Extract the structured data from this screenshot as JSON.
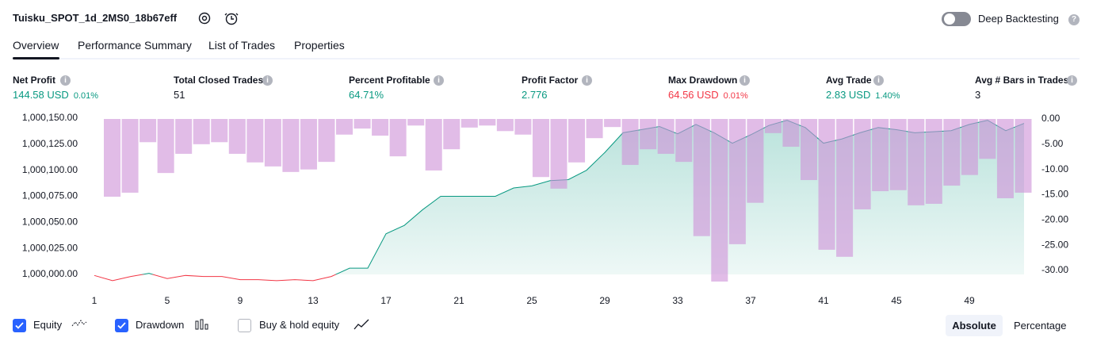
{
  "header": {
    "title": "Tuisku_SPOT_1d_2MS0_18b67eff",
    "toggle_label": "Deep Backtesting"
  },
  "tabs": [
    "Overview",
    "Performance Summary",
    "List of Trades",
    "Properties"
  ],
  "metrics": [
    {
      "label": "Net Profit",
      "value": "144.58 USD",
      "pct": "0.01%"
    },
    {
      "label": "Total Closed Trades",
      "value": "51"
    },
    {
      "label": "Percent Profitable",
      "value": "64.71%"
    },
    {
      "label": "Profit Factor",
      "value": "2.776"
    },
    {
      "label": "Max Drawdown",
      "value": "64.56 USD",
      "pct": "0.01%"
    },
    {
      "label": "Avg Trade",
      "value": "2.83 USD",
      "pct": "1.40%"
    },
    {
      "label": "Avg # Bars in Trades",
      "value": "3"
    }
  ],
  "chart_data": {
    "type": "line",
    "x": [
      1,
      2,
      3,
      4,
      5,
      6,
      7,
      8,
      9,
      10,
      11,
      12,
      13,
      14,
      15,
      16,
      17,
      18,
      19,
      20,
      21,
      22,
      23,
      24,
      25,
      26,
      27,
      28,
      29,
      30,
      31,
      32,
      33,
      34,
      35,
      36,
      37,
      38,
      39,
      40,
      41,
      42,
      43,
      44,
      45,
      46,
      47,
      48,
      49,
      50,
      51,
      52
    ],
    "series": [
      {
        "name": "Equity",
        "color": "#089981",
        "values": [
          999999,
          999994,
          999998,
          1000001,
          999996,
          999999,
          999998,
          999998,
          999995,
          999995,
          999994,
          999995,
          999994,
          999998,
          1000006,
          1000006,
          1000039,
          1000047,
          1000062,
          1000075,
          1000075,
          1000075,
          1000075,
          1000083,
          1000085,
          1000090,
          1000091,
          1000100,
          1000117,
          1000136,
          1000139,
          1000142,
          1000135,
          1000144,
          1000136,
          1000126,
          1000134,
          1000143,
          1000148,
          1000141,
          1000126,
          1000130,
          1000136,
          1000141,
          1000139,
          1000136,
          1000137,
          1000138,
          1000144,
          1000148,
          1000138,
          1000145
        ]
      },
      {
        "name": "Drawdown",
        "color": "#ce93d8",
        "axis": "y2",
        "values": [
          -15.4,
          -14.6,
          -4.6,
          -10.7,
          -6.9,
          -5.0,
          -4.6,
          -6.9,
          -8.6,
          -9.4,
          -10.5,
          -10.0,
          -8.5,
          -3.1,
          -1.9,
          -3.3,
          -7.4,
          -1.3,
          -10.2,
          -6.0,
          -1.7,
          -1.3,
          -2.4,
          -3.1,
          -11.5,
          -13.8,
          -8.6,
          -3.8,
          -1.6,
          -9.1,
          -6.0,
          -6.9,
          -8.5,
          -23.2,
          -32.2,
          -24.8,
          -16.6,
          -2.8,
          -5.5,
          -12.1,
          -25.9,
          -27.3,
          -17.9,
          -14.3,
          -14.1,
          -17.1,
          -16.8,
          -13.2,
          -11.1,
          -7.9,
          -15.7,
          -14.6
        ]
      }
    ],
    "xlim": [
      1,
      52
    ],
    "xticks": [
      1,
      5,
      9,
      13,
      17,
      21,
      25,
      29,
      33,
      37,
      41,
      45,
      49
    ],
    "ylim": [
      1000000,
      1000150
    ],
    "yticks": [
      {
        "value": 1000000,
        "label": "1,000,000.00"
      },
      {
        "value": 1000025,
        "label": "1,000,025.00"
      },
      {
        "value": 1000050,
        "label": "1,000,050.00"
      },
      {
        "value": 1000075,
        "label": "1,000,075.00"
      },
      {
        "value": 1000100,
        "label": "1,000,100.00"
      },
      {
        "value": 1000125,
        "label": "1,000,125.00"
      },
      {
        "value": 1000150,
        "label": "1,000,150.00"
      }
    ],
    "y2lim": [
      -30,
      0
    ],
    "y2ticks": [
      {
        "value": 0,
        "label": "0.00"
      },
      {
        "value": -5,
        "label": "-5.00"
      },
      {
        "value": -10,
        "label": "-10.00"
      },
      {
        "value": -15,
        "label": "-15.00"
      },
      {
        "value": -20,
        "label": "-20.00"
      },
      {
        "value": -25,
        "label": "-25.00"
      },
      {
        "value": -30,
        "label": "-30.00"
      }
    ]
  },
  "legend": [
    {
      "name": "Equity",
      "checked": true
    },
    {
      "name": "Drawdown",
      "checked": true
    },
    {
      "name": "Buy & hold equity",
      "checked": false
    }
  ],
  "buttons": [
    "Absolute",
    "Percentage"
  ]
}
